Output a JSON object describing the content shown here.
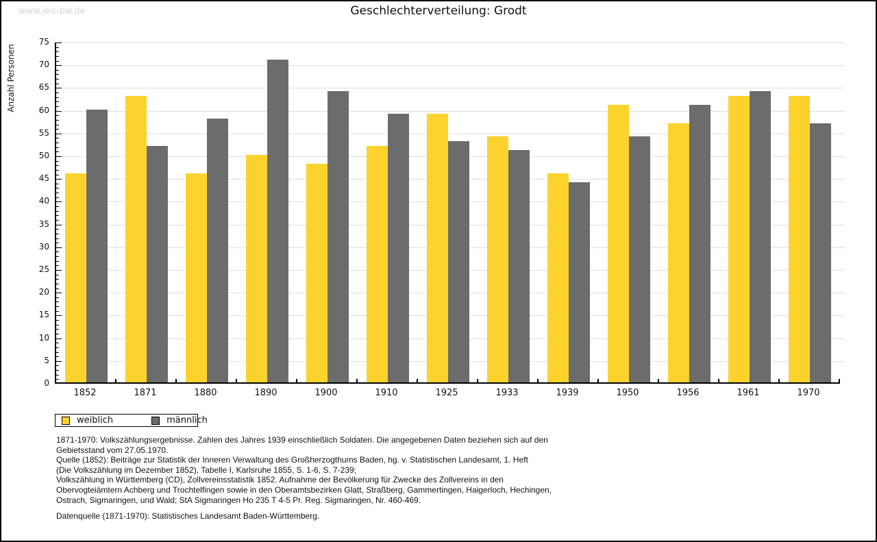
{
  "watermark": "www.leo-bw.de",
  "title": "Geschlechterverteilung: Grodt",
  "colors": {
    "female": "#FCD32D",
    "male": "#6C6C6C",
    "grid": "#DEDEDE",
    "axis": "#000000",
    "watermark": "#D6D6D6"
  },
  "chart_data": {
    "type": "bar",
    "title": "Geschlechterverteilung: Grodt",
    "xlabel": "",
    "ylabel": "Anzahl Personen",
    "ylim": [
      0,
      75
    ],
    "ytick_step": 5,
    "grid": true,
    "legend_position": "bottom-left",
    "categories": [
      "1852",
      "1871",
      "1880",
      "1890",
      "1900",
      "1910",
      "1925",
      "1933",
      "1939",
      "1950",
      "1956",
      "1961",
      "1970"
    ],
    "series": [
      {
        "name": "weiblich",
        "color": "#FCD32D",
        "values": [
          46,
          63,
          46,
          50,
          48,
          52,
          59,
          54,
          46,
          61,
          57,
          63,
          63
        ]
      },
      {
        "name": "männlich",
        "color": "#6C6C6C",
        "values": [
          60,
          52,
          58,
          71,
          64,
          59,
          53,
          51,
          44,
          54,
          61,
          64,
          57
        ]
      }
    ]
  },
  "notes": {
    "lines": [
      "1871-1970: Volkszählungsergebnisse. Zahlen des Jahres 1939 einschließlich Soldaten. Die angegebenen Daten beziehen sich auf den",
      "Gebietsstand vom 27.05.1970.",
      "Quelle (1852): Beiträge zur Statistik der Inneren Verwaltung des Großherzogthums Baden, hg. v. Statistischen Landesamt, 1. Heft",
      "(Die Volkszählung im Dezember 1852), Tabelle I, Karlsruhe 1855, S. 1-6, S. 7-239;",
      "Volkszählung in Württemberg (CD), Zollvereinsstatistik 1852. Aufnahme der Bevölkerung für Zwecke des Zollvereins in den",
      "Obervogteiämtern Achberg und Trochtelfingen sowie in den Oberamtsbezirken Glatt, Straßberg, Gammertingen, Haigerloch, Hechingen,",
      "Ostrach, Sigmaringen, und Wald; StA Sigmaringen Ho 235 T 4-5 Pr. Reg. Sigmaringen, Nr. 460-469."
    ],
    "datasource": "Datenquelle (1871-1970): Statistisches Landesamt Baden-Württemberg."
  }
}
